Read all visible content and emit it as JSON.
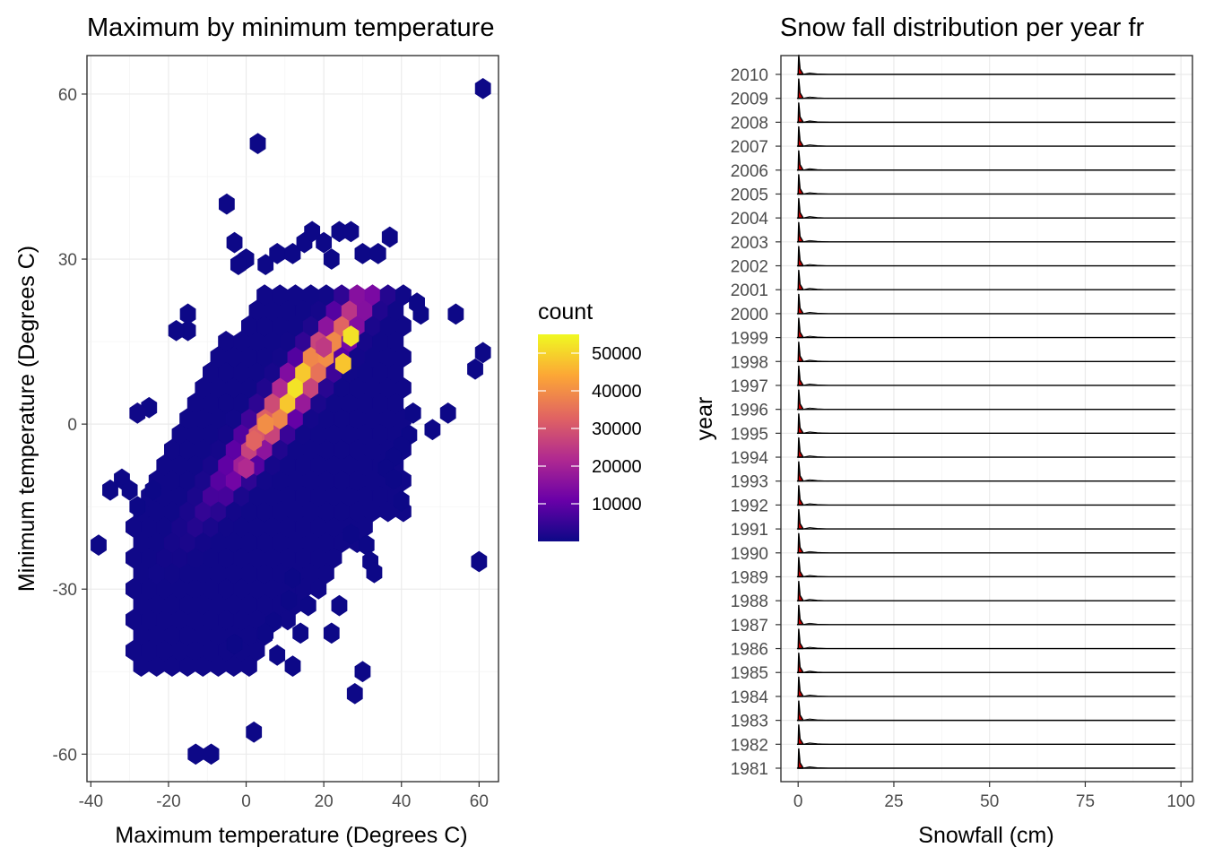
{
  "chart_data": [
    {
      "type": "hexbin",
      "title": "Maximum by minimum temperature",
      "xlabel": "Maximum temperature (Degrees C)",
      "ylabel": "Minimum temperature (Degrees C)",
      "xlim": [
        -41,
        65
      ],
      "ylim": [
        -65,
        67
      ],
      "x_ticks": [
        -40,
        -20,
        0,
        20,
        40,
        60
      ],
      "x_tick_labels": [
        "-40",
        "-20",
        "0",
        "20",
        "40",
        "60"
      ],
      "y_ticks": [
        -60,
        -30,
        0,
        30,
        60
      ],
      "y_tick_labels": [
        "-60",
        "-30",
        "0",
        "30",
        "60"
      ],
      "grid": true,
      "fill_scale": {
        "name": "count",
        "palette": "plasma",
        "colors": [
          "#0d0887",
          "#6a00a8",
          "#b12a90",
          "#e16462",
          "#fca636",
          "#f0f921"
        ],
        "range": [
          0,
          55000
        ],
        "breaks": [
          10000,
          20000,
          30000,
          40000,
          50000
        ],
        "break_labels": [
          "10000",
          "20000",
          "30000",
          "40000",
          "50000"
        ]
      },
      "legend_position": "right",
      "cells": [
        {
          "x": 61,
          "y": 61,
          "count": 3
        },
        {
          "x": 3,
          "y": 51,
          "count": 2
        },
        {
          "x": -5,
          "y": 40,
          "count": 2
        },
        {
          "x": 59,
          "y": 10,
          "count": 3
        },
        {
          "x": 61,
          "y": 13,
          "count": 3
        },
        {
          "x": 54,
          "y": 20,
          "count": 2
        },
        {
          "x": 43,
          "y": 2,
          "count": 3
        },
        {
          "x": 48,
          "y": -1,
          "count": 2
        },
        {
          "x": 52,
          "y": 2,
          "count": 2
        },
        {
          "x": 60,
          "y": -25,
          "count": 2
        },
        {
          "x": -38,
          "y": -22,
          "count": 2
        },
        {
          "x": -15,
          "y": 20,
          "count": 3
        },
        {
          "x": 30,
          "y": -45,
          "count": 2
        },
        {
          "x": 28,
          "y": -49,
          "count": 2
        },
        {
          "x": 2,
          "y": -56,
          "count": 2
        },
        {
          "x": -13,
          "y": -60,
          "count": 2
        },
        {
          "x": -9,
          "y": -60,
          "count": 2
        },
        {
          "x": -28,
          "y": 2,
          "count": 300
        },
        {
          "x": 20,
          "y": 14,
          "count": 25000
        },
        {
          "x": 25,
          "y": 11,
          "count": 48000
        },
        {
          "x": 27,
          "y": 16,
          "count": 52000
        },
        {
          "x": 5,
          "y": 0,
          "count": 40000
        },
        {
          "x": 2,
          "y": -3,
          "count": 33000
        },
        {
          "x": 0,
          "y": -8,
          "count": 22000
        }
      ]
    },
    {
      "type": "ridgeline",
      "title": "Snow fall distribution per year fr",
      "xlabel": "Snowfall (cm)",
      "ylabel": "year",
      "xlim": [
        -4.5,
        103
      ],
      "x_ticks": [
        0,
        25,
        50,
        75,
        100
      ],
      "x_tick_labels": [
        "0",
        "25",
        "50",
        "75",
        "100"
      ],
      "fill": "#cc0000",
      "baseline_end": 98.5,
      "categories": [
        "1981",
        "1982",
        "1983",
        "1984",
        "1985",
        "1986",
        "1987",
        "1988",
        "1989",
        "1990",
        "1991",
        "1992",
        "1993",
        "1994",
        "1995",
        "1996",
        "1997",
        "1998",
        "1999",
        "2000",
        "2001",
        "2002",
        "2003",
        "2004",
        "2005",
        "2006",
        "2007",
        "2008",
        "2009",
        "2010"
      ],
      "grid": true
    }
  ]
}
